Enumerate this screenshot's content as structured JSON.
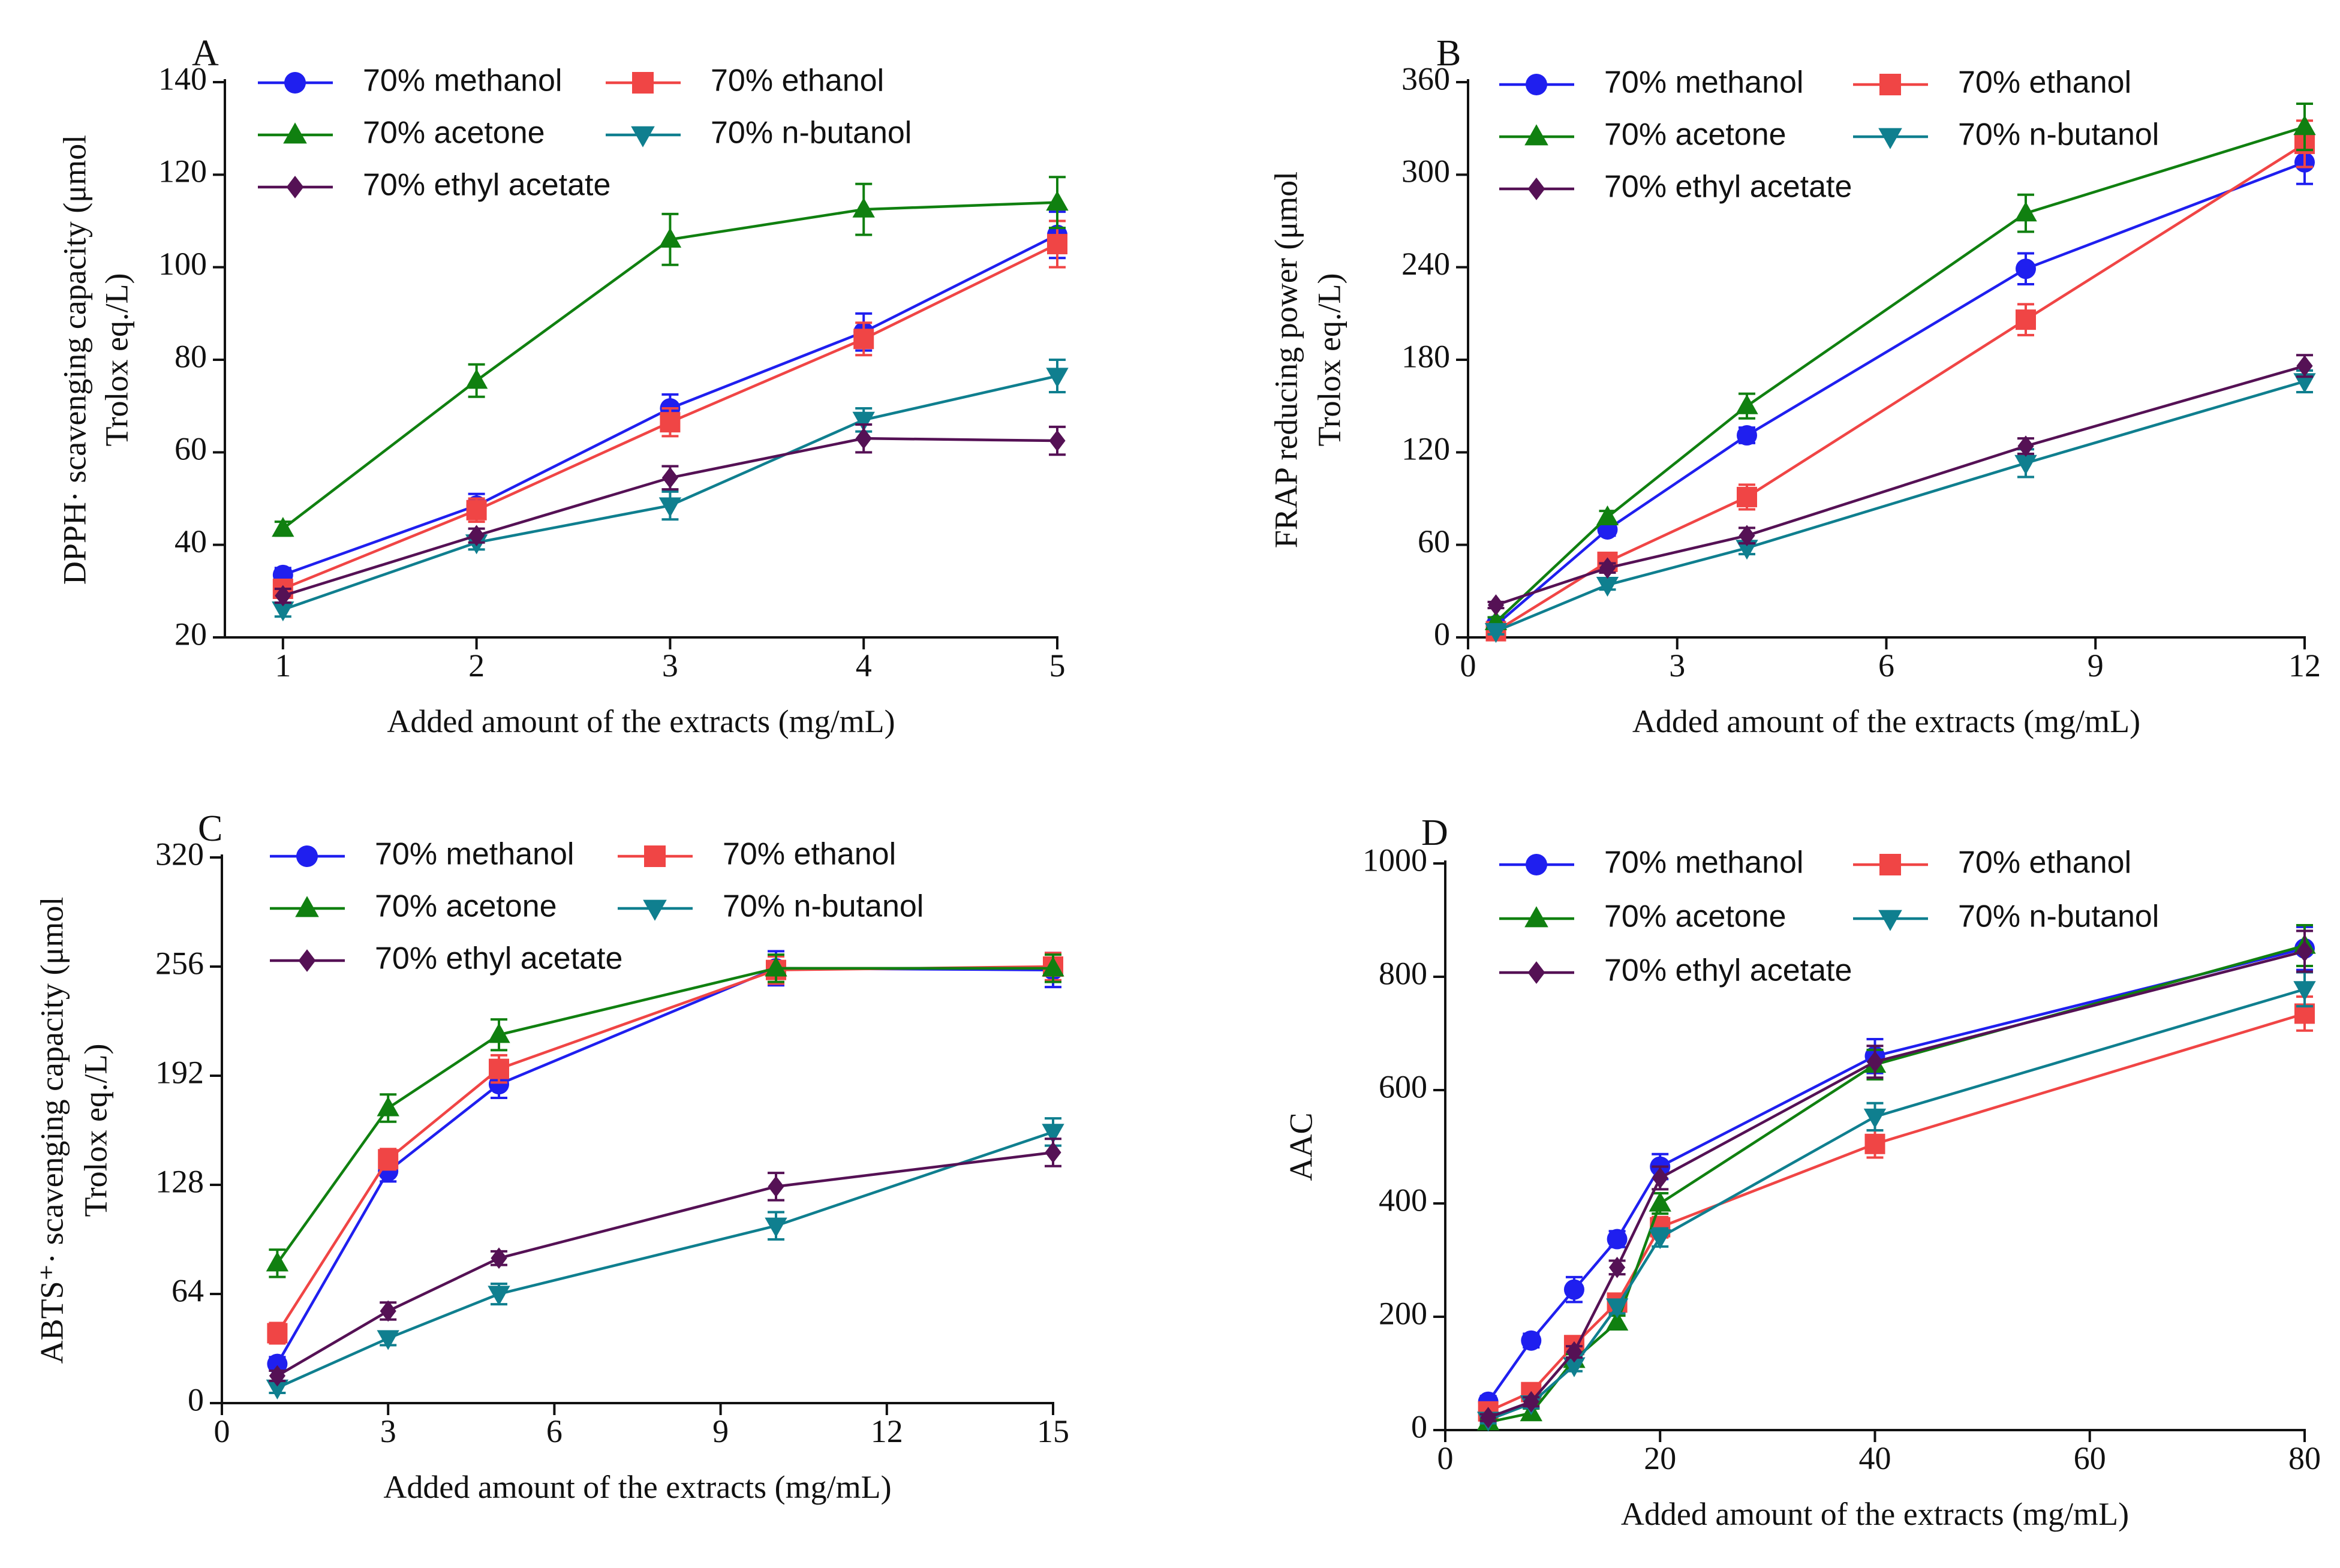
{
  "chart_data": [
    {
      "panel": "A",
      "type": "line",
      "xlabel": "Added amount of the extracts (mg/mL)",
      "ylabel": [
        "DPPH· scavenging capacity (μmol",
        "Trolox eq./L)"
      ],
      "xlim": [
        0.7,
        5
      ],
      "xticks": [
        1,
        2,
        3,
        4,
        5
      ],
      "ylim": [
        20,
        140
      ],
      "yticks": [
        20,
        40,
        60,
        80,
        100,
        120,
        140
      ],
      "legend_cols": 2,
      "series": [
        {
          "name": "70% methanol",
          "color": "#1f1fef",
          "marker": "circle",
          "x": [
            1,
            2,
            3,
            4,
            5
          ],
          "y": [
            33.5,
            48.5,
            69.5,
            86,
            107
          ],
          "err": [
            1.5,
            2.5,
            3,
            4,
            5
          ]
        },
        {
          "name": "70% ethanol",
          "color": "#f04545",
          "marker": "square",
          "x": [
            1,
            2,
            3,
            4,
            5
          ],
          "y": [
            30.5,
            47.5,
            66.5,
            84.5,
            105
          ],
          "err": [
            1.5,
            2.5,
            3,
            3.5,
            5
          ]
        },
        {
          "name": "70% acetone",
          "color": "#108010",
          "marker": "triangle-up",
          "x": [
            1,
            2,
            3,
            4,
            5
          ],
          "y": [
            43.5,
            75.5,
            106,
            112.5,
            114
          ],
          "err": [
            1.5,
            3.5,
            5.5,
            5.5,
            5.5
          ]
        },
        {
          "name": "70% n-butanol",
          "color": "#0f7f8f",
          "marker": "triangle-down",
          "x": [
            1,
            2,
            3,
            4,
            5
          ],
          "y": [
            26,
            40.5,
            48.5,
            67,
            76.5
          ],
          "err": [
            1.5,
            1.5,
            3,
            2.5,
            3.5
          ]
        },
        {
          "name": "70% ethyl acetate",
          "color": "#551155",
          "marker": "diamond",
          "x": [
            1,
            2,
            3,
            4,
            5
          ],
          "y": [
            29,
            42,
            54.5,
            63,
            62.5
          ],
          "err": [
            1.5,
            1.5,
            2.5,
            3,
            3
          ]
        }
      ]
    },
    {
      "panel": "B",
      "type": "line",
      "xlabel": "Added amount of the extracts (mg/mL)",
      "ylabel": [
        "FRAP reducing power (μmol",
        "Trolox eq./L)"
      ],
      "xlim": [
        0,
        12
      ],
      "xticks": [
        0,
        3,
        6,
        9,
        12
      ],
      "ylim": [
        0,
        360
      ],
      "yticks": [
        0,
        60,
        120,
        180,
        240,
        300,
        360
      ],
      "legend_cols": 2,
      "series": [
        {
          "name": "70% methanol",
          "color": "#1f1fef",
          "marker": "circle",
          "x": [
            0.4,
            2,
            4,
            8,
            12
          ],
          "y": [
            8,
            70,
            131,
            239,
            308
          ],
          "err": [
            3,
            4,
            5,
            10,
            14
          ]
        },
        {
          "name": "70% ethanol",
          "color": "#f04545",
          "marker": "square",
          "x": [
            0.4,
            2,
            4,
            8,
            12
          ],
          "y": [
            4,
            49,
            91,
            206,
            320
          ],
          "err": [
            2,
            4,
            8,
            10,
            15
          ]
        },
        {
          "name": "70% acetone",
          "color": "#108010",
          "marker": "triangle-up",
          "x": [
            0.4,
            2,
            4,
            8,
            12
          ],
          "y": [
            10,
            78,
            150,
            275,
            331
          ],
          "err": [
            3,
            4,
            8,
            12,
            15
          ]
        },
        {
          "name": "70% n-butanol",
          "color": "#0f7f8f",
          "marker": "triangle-down",
          "x": [
            0.4,
            2,
            4,
            8,
            12
          ],
          "y": [
            4,
            34,
            58,
            113,
            166
          ],
          "err": [
            2,
            3,
            4,
            9,
            7
          ]
        },
        {
          "name": "70% ethyl acetate",
          "color": "#551155",
          "marker": "diamond",
          "x": [
            0.4,
            2,
            4,
            8,
            12
          ],
          "y": [
            21,
            45,
            66,
            124,
            176
          ],
          "err": [
            2,
            3,
            5,
            5,
            7
          ]
        }
      ]
    },
    {
      "panel": "C",
      "type": "line",
      "xlabel": "Added amount of the extracts (mg/mL)",
      "ylabel": [
        "ABTS⁺· scavenging capacity (μmol",
        "Trolox eq./L)"
      ],
      "xlim": [
        0,
        15
      ],
      "xticks": [
        0,
        3,
        6,
        9,
        12,
        15
      ],
      "ylim": [
        0,
        320
      ],
      "yticks": [
        0,
        64,
        128,
        192,
        256,
        320
      ],
      "legend_cols": 2,
      "series": [
        {
          "name": "70% methanol",
          "color": "#1f1fef",
          "marker": "circle",
          "x": [
            1,
            3,
            5,
            10,
            15
          ],
          "y": [
            23,
            136,
            187,
            255,
            254
          ],
          "err": [
            4,
            6,
            8,
            10,
            10
          ]
        },
        {
          "name": "70% ethanol",
          "color": "#f04545",
          "marker": "square",
          "x": [
            1,
            3,
            5,
            10,
            15
          ],
          "y": [
            41,
            143,
            196,
            254,
            256
          ],
          "err": [
            6,
            6,
            8,
            8,
            8
          ]
        },
        {
          "name": "70% acetone",
          "color": "#108010",
          "marker": "triangle-up",
          "x": [
            1,
            3,
            5,
            10,
            15
          ],
          "y": [
            82,
            173,
            216,
            255,
            255
          ],
          "err": [
            8,
            8,
            9,
            8,
            8
          ]
        },
        {
          "name": "70% n-butanol",
          "color": "#0f7f8f",
          "marker": "triangle-down",
          "x": [
            1,
            3,
            5,
            10,
            15
          ],
          "y": [
            9,
            38,
            64,
            104,
            159
          ],
          "err": [
            3,
            4,
            6,
            8,
            8
          ]
        },
        {
          "name": "70% ethyl acetate",
          "color": "#551155",
          "marker": "diamond",
          "x": [
            1,
            3,
            5,
            10,
            15
          ],
          "y": [
            16,
            54,
            85,
            127,
            147
          ],
          "err": [
            3,
            5,
            4,
            8,
            8
          ]
        }
      ]
    },
    {
      "panel": "D",
      "type": "line",
      "xlabel": "Added amount of the extracts (mg/mL)",
      "ylabel": [
        "AAC"
      ],
      "xlim": [
        0,
        80
      ],
      "xticks": [
        0,
        20,
        40,
        60,
        80
      ],
      "ylim": [
        0,
        1000
      ],
      "yticks": [
        0,
        200,
        400,
        600,
        800,
        1000
      ],
      "legend_cols": 2,
      "series": [
        {
          "name": "70% methanol",
          "color": "#1f1fef",
          "marker": "circle",
          "x": [
            4,
            8,
            12,
            16,
            20,
            40,
            80
          ],
          "y": [
            50,
            158,
            248,
            337,
            465,
            660,
            850
          ],
          "err": [
            10,
            12,
            22,
            14,
            22,
            30,
            38
          ]
        },
        {
          "name": "70% ethanol",
          "color": "#f04545",
          "marker": "square",
          "x": [
            4,
            8,
            12,
            16,
            20,
            40,
            80
          ],
          "y": [
            33,
            67,
            150,
            225,
            358,
            505,
            735
          ],
          "err": [
            8,
            10,
            14,
            14,
            18,
            24,
            30
          ]
        },
        {
          "name": "70% acetone",
          "color": "#108010",
          "marker": "triangle-up",
          "x": [
            4,
            8,
            12,
            16,
            20,
            40,
            80
          ],
          "y": [
            14,
            30,
            124,
            190,
            400,
            645,
            855
          ],
          "err": [
            5,
            8,
            10,
            12,
            18,
            26,
            36
          ]
        },
        {
          "name": "70% n-butanol",
          "color": "#0f7f8f",
          "marker": "triangle-down",
          "x": [
            4,
            8,
            12,
            16,
            20,
            40,
            80
          ],
          "y": [
            18,
            47,
            114,
            218,
            340,
            553,
            778
          ],
          "err": [
            6,
            8,
            10,
            12,
            16,
            24,
            30
          ]
        },
        {
          "name": "70% ethyl acetate",
          "color": "#551155",
          "marker": "diamond",
          "x": [
            4,
            8,
            12,
            16,
            20,
            40,
            80
          ],
          "y": [
            22,
            50,
            138,
            287,
            445,
            650,
            845
          ],
          "err": [
            6,
            8,
            10,
            12,
            20,
            28,
            36
          ]
        }
      ]
    }
  ]
}
